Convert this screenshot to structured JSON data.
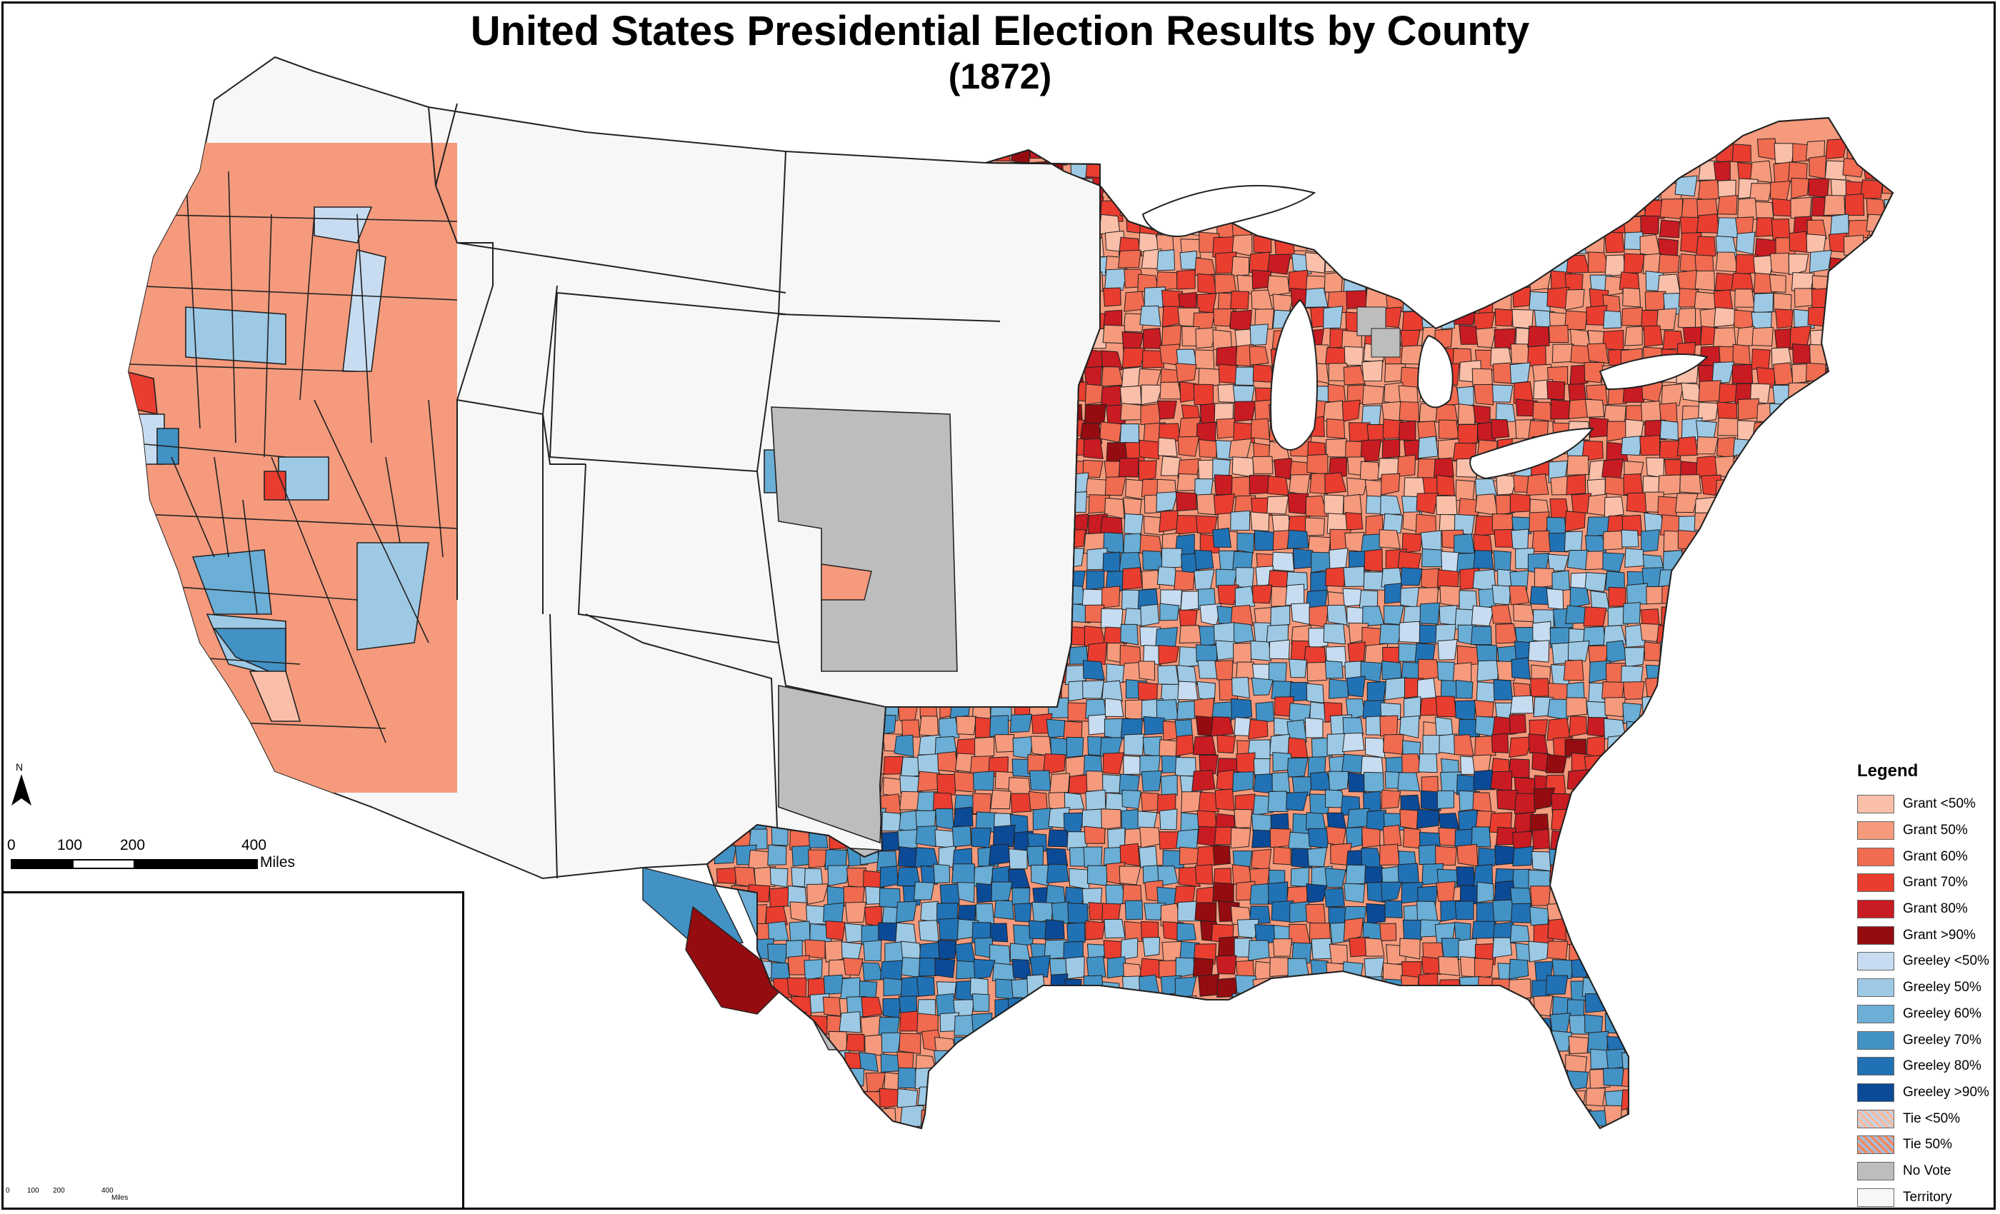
{
  "title_line1": "United States Presidential Election Results by County",
  "title_line2": "(1872)",
  "scale_main": {
    "ticks": [
      "0",
      "100",
      "200",
      "400"
    ],
    "unit": "Miles"
  },
  "scale_inset": {
    "ticks": [
      "0",
      "100",
      "200",
      "400"
    ],
    "unit": "Miles"
  },
  "north_label": "N",
  "legend": {
    "title": "Legend",
    "items": [
      {
        "label": "Grant <50%",
        "color": "#f9bfa9"
      },
      {
        "label": "Grant 50%",
        "color": "#f59a7c"
      },
      {
        "label": "Grant 60%",
        "color": "#f06b4f"
      },
      {
        "label": "Grant 70%",
        "color": "#e83d2f"
      },
      {
        "label": "Grant 80%",
        "color": "#c81b22"
      },
      {
        "label": "Grant >90%",
        "color": "#940c10"
      },
      {
        "label": "Greeley <50%",
        "color": "#c7dcf0"
      },
      {
        "label": "Greeley 50%",
        "color": "#9ec9e5"
      },
      {
        "label": "Greeley 60%",
        "color": "#6baed6"
      },
      {
        "label": "Greeley 70%",
        "color": "#4292c6"
      },
      {
        "label": "Greeley 80%",
        "color": "#2171b5"
      },
      {
        "label": "Greeley >90%",
        "color": "#0b4a97"
      },
      {
        "label": "Tie <50%",
        "color": "pattern-light"
      },
      {
        "label": "Tie 50%",
        "color": "pattern-dark"
      },
      {
        "label": "No Vote",
        "color": "#bdbdbd"
      },
      {
        "label": "Territory",
        "color": "#f7f7f7"
      }
    ]
  }
}
